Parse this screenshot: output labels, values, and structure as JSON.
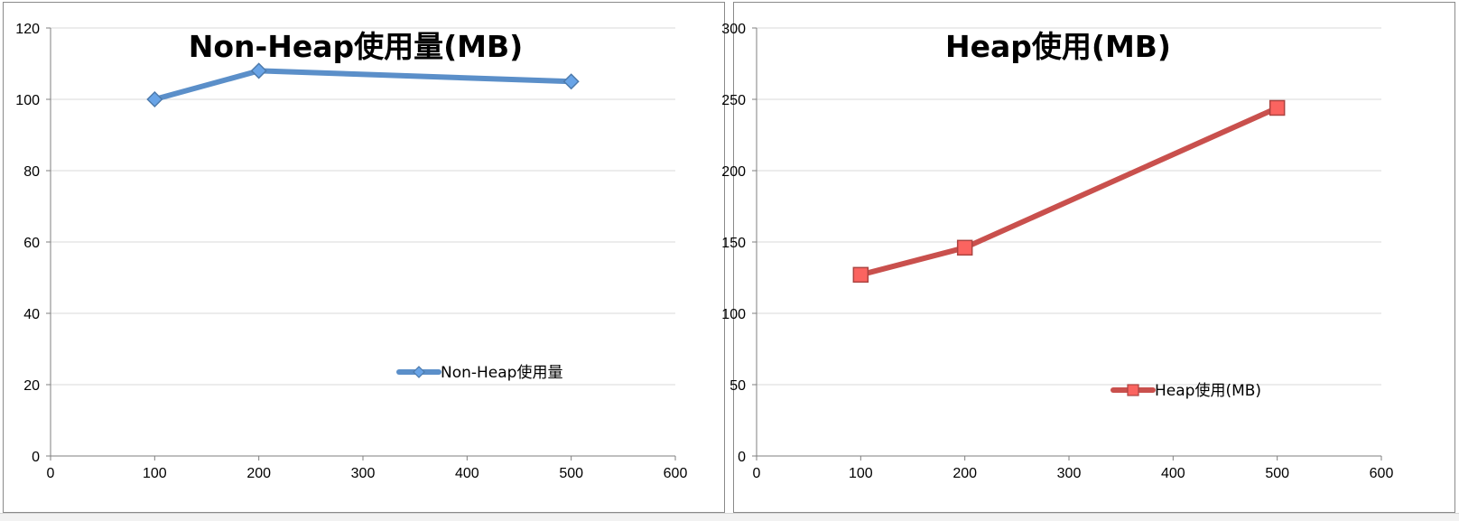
{
  "chart_data": [
    {
      "type": "line",
      "title": "Non-Heap使用量(MB)",
      "xlabel": "",
      "ylabel": "",
      "xlim": [
        0,
        600
      ],
      "ylim": [
        0,
        120
      ],
      "xticks": [
        "0",
        "100",
        "200",
        "300",
        "400",
        "500",
        "600"
      ],
      "yticks": [
        "0",
        "20",
        "40",
        "60",
        "80",
        "100",
        "120"
      ],
      "grid": true,
      "legend_position": "bottom-right",
      "color": "#5b8fc9",
      "marker": "diamond",
      "series": [
        {
          "name": "Non-Heap使用量",
          "x": [
            100,
            200,
            500
          ],
          "y": [
            100,
            108,
            105
          ]
        }
      ]
    },
    {
      "type": "line",
      "title": "Heap使用(MB)",
      "xlabel": "",
      "ylabel": "",
      "xlim": [
        0,
        600
      ],
      "ylim": [
        0,
        300
      ],
      "xticks": [
        "0",
        "100",
        "200",
        "300",
        "400",
        "500",
        "600"
      ],
      "yticks": [
        "0",
        "50",
        "100",
        "150",
        "200",
        "250",
        "300"
      ],
      "grid": true,
      "legend_position": "bottom-right",
      "color": "#c9504d",
      "marker": "square",
      "series": [
        {
          "name": "Heap使用(MB)",
          "x": [
            100,
            200,
            500
          ],
          "y": [
            127,
            146,
            244
          ]
        }
      ]
    }
  ]
}
